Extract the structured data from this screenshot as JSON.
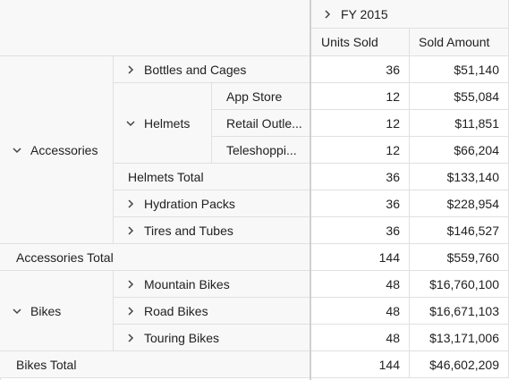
{
  "header": {
    "year_label": "FY 2015",
    "col_units": "Units Sold",
    "col_amount": "Sold Amount"
  },
  "rows": {
    "accessories": "Accessories",
    "bottles": {
      "label": "Bottles and Cages",
      "units": "36",
      "amount": "$51,140"
    },
    "helmets": "Helmets",
    "app_store": {
      "label": "App Store",
      "units": "12",
      "amount": "$55,084"
    },
    "retail": {
      "label": "Retail Outle...",
      "units": "12",
      "amount": "$11,851"
    },
    "teleshop": {
      "label": "Teleshoppi...",
      "units": "12",
      "amount": "$66,204"
    },
    "helmets_total": {
      "label": "Helmets Total",
      "units": "36",
      "amount": "$133,140"
    },
    "hydration": {
      "label": "Hydration Packs",
      "units": "36",
      "amount": "$228,954"
    },
    "tires": {
      "label": "Tires and Tubes",
      "units": "36",
      "amount": "$146,527"
    },
    "accessories_total": {
      "label": "Accessories Total",
      "units": "144",
      "amount": "$559,760"
    },
    "bikes": "Bikes",
    "mountain": {
      "label": "Mountain Bikes",
      "units": "48",
      "amount": "$16,760,100"
    },
    "road": {
      "label": "Road Bikes",
      "units": "48",
      "amount": "$16,671,103"
    },
    "touring": {
      "label": "Touring Bikes",
      "units": "48",
      "amount": "$13,171,006"
    },
    "bikes_total": {
      "label": "Bikes Total",
      "units": "144",
      "amount": "$46,602,209"
    }
  },
  "icons": {
    "collapsed": "chevron-right-icon",
    "expanded": "chevron-down-icon"
  },
  "colors": {
    "header_bg": "#f8f8f8",
    "border": "#e0e0e0",
    "text": "#212121"
  }
}
